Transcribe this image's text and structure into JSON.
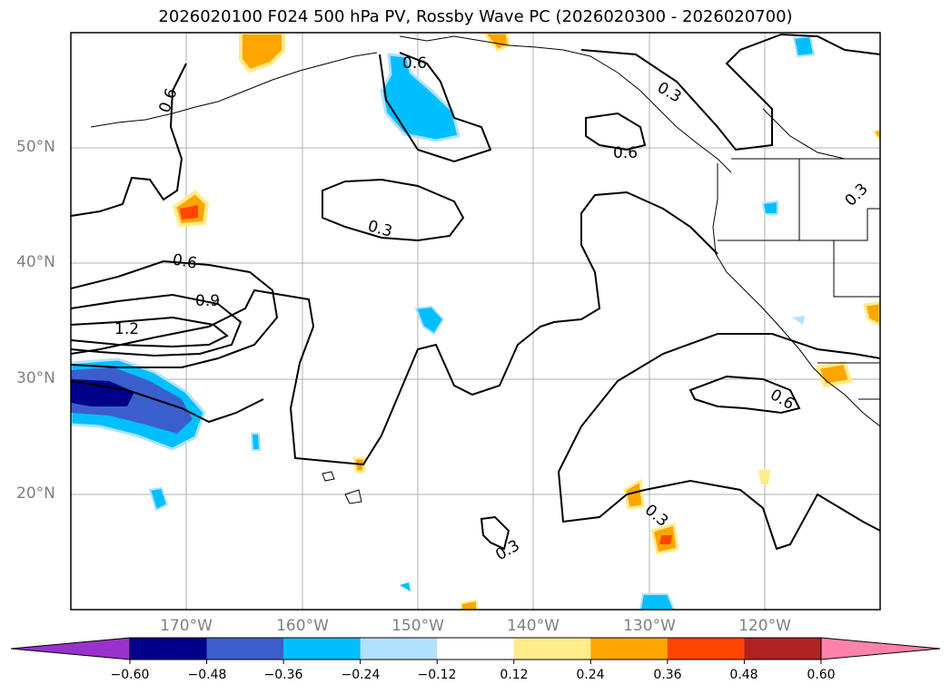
{
  "title": "2026020100 F024 500 hPa PV, Rossby Wave PC (2026020300 - 2026020700)",
  "lat_labels": [
    "50°N",
    "40°N",
    "30°N",
    "20°N"
  ],
  "lon_labels": [
    "170°W",
    "160°W",
    "150°W",
    "140°W",
    "130°W",
    "120°W"
  ],
  "contour_labels": [
    "0.6",
    "0.6",
    "0.3",
    "0.6",
    "0.3",
    "0.3",
    "0.6",
    "0.9",
    "1.2",
    "0.6",
    "0.3",
    "0.3"
  ],
  "colorbar": {
    "ticks": [
      "−0.60",
      "−0.48",
      "−0.36",
      "−0.24",
      "−0.12",
      "0.12",
      "0.24",
      "0.36",
      "0.48",
      "0.60"
    ],
    "colors": [
      "#9932cc",
      "#00008b",
      "#3a5fcd",
      "#00bfff",
      "#b0e2ff",
      "#ffffff",
      "#ffec8b",
      "#ffa500",
      "#ff4500",
      "#b22222",
      "#ff82ab"
    ]
  }
}
